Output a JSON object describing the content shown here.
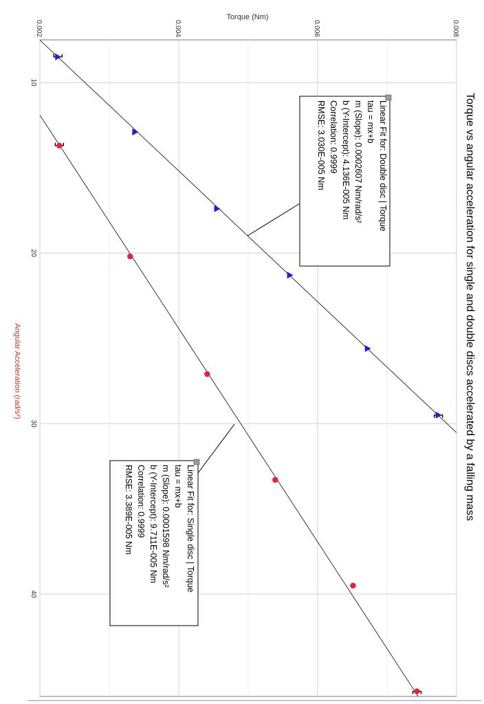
{
  "chart_data": {
    "type": "scatter",
    "title": "Torque vs angular acceleration for single and double discs accelerated by a falling mass",
    "xlabel": "Angular Acceleration (rad/s²)",
    "ylabel": "Torque (Nm)",
    "xlim": [
      7.5,
      46
    ],
    "ylim": [
      0.002,
      0.008
    ],
    "x_ticks": [
      "10",
      "20",
      "30",
      "40"
    ],
    "y_ticks": [
      "0.002",
      "0.004",
      "0.006",
      "0.008"
    ],
    "grid": true,
    "series": [
      {
        "name": "Double disc",
        "marker": "triangle",
        "color": "#1f1fd6",
        "points": [
          {
            "x": 8.5,
            "y": 0.00226
          },
          {
            "x": 12.9,
            "y": 0.00337
          },
          {
            "x": 17.4,
            "y": 0.00455
          },
          {
            "x": 21.3,
            "y": 0.0056
          },
          {
            "x": 25.6,
            "y": 0.00672
          },
          {
            "x": 29.5,
            "y": 0.00774
          }
        ],
        "fit": {
          "m": 0.0002607,
          "b": 4.136e-05
        }
      },
      {
        "name": "Single disc",
        "marker": "circle",
        "color": "#e8203a",
        "points": [
          {
            "x": 13.7,
            "y": 0.00228
          },
          {
            "x": 20.2,
            "y": 0.0033
          },
          {
            "x": 27.1,
            "y": 0.00441
          },
          {
            "x": 33.3,
            "y": 0.00539
          },
          {
            "x": 39.5,
            "y": 0.00651
          },
          {
            "x": 45.7,
            "y": 0.00743
          }
        ],
        "fit": {
          "m": 0.0001598,
          "b": 9.711e-05
        }
      }
    ],
    "annotations": [
      {
        "series": "Double disc",
        "lines": [
          "Linear Fit for: Double disc | Torque",
          "tau = mx+b",
          "m (Slope): 0.0002607 Nm/rad/s²",
          "b (Y-Intercept): 4.136E-005 Nm",
          "Correlation: 0.9999",
          "RMSE: 3.030E-005 Nm"
        ]
      },
      {
        "series": "Single disc",
        "lines": [
          "Linear Fit for: Single disc | Torque",
          "tau = mx+b",
          "m (Slope): 0.0001598 Nm/rad/s²",
          "b (Y-Intercept): 9.711E-005 Nm",
          "Correlation: 0.9999",
          "RMSE: 3.389E-005 Nm"
        ]
      }
    ]
  }
}
